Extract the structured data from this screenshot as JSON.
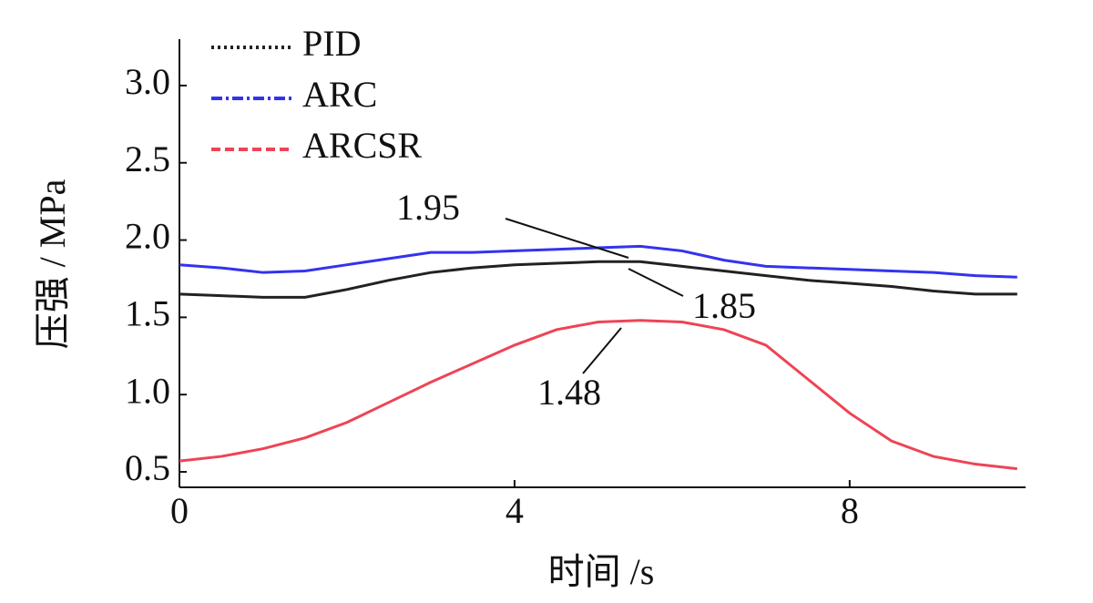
{
  "chart_data": {
    "type": "line",
    "xlabel": "时间 /s",
    "ylabel": "压强 / MPa",
    "x": [
      0,
      0.5,
      1,
      1.5,
      2,
      2.5,
      3,
      3.5,
      4,
      4.5,
      5,
      5.5,
      6,
      6.5,
      7,
      7.5,
      8,
      8.5,
      9,
      9.5,
      10
    ],
    "series": [
      {
        "name": "PID",
        "color": "#222222",
        "dash": "3 4",
        "values": [
          1.65,
          1.64,
          1.63,
          1.63,
          1.68,
          1.74,
          1.79,
          1.82,
          1.84,
          1.85,
          1.86,
          1.86,
          1.83,
          1.8,
          1.77,
          1.74,
          1.72,
          1.7,
          1.67,
          1.65,
          1.65
        ]
      },
      {
        "name": "ARC",
        "color": "#3333ee",
        "dash": "12 4 3 4",
        "values": [
          1.84,
          1.82,
          1.79,
          1.8,
          1.84,
          1.88,
          1.92,
          1.92,
          1.93,
          1.94,
          1.95,
          1.96,
          1.93,
          1.87,
          1.83,
          1.82,
          1.81,
          1.8,
          1.79,
          1.77,
          1.76
        ]
      },
      {
        "name": "ARCSR",
        "color": "#ee4455",
        "dash": "10 5",
        "values": [
          0.57,
          0.6,
          0.65,
          0.72,
          0.82,
          0.95,
          1.08,
          1.2,
          1.32,
          1.42,
          1.47,
          1.48,
          1.47,
          1.42,
          1.32,
          1.1,
          0.88,
          0.7,
          0.6,
          0.55,
          0.52
        ]
      }
    ],
    "annotations": [
      "1.95",
      "1.85",
      "1.48"
    ],
    "xlim": [
      0,
      10.1
    ],
    "xticks": [
      0,
      4,
      8
    ],
    "ylim": [
      0.4,
      3.3
    ],
    "yticks": [
      0.5,
      {
        "value": 1.0,
        "label": "1.0"
      },
      1.5,
      {
        "value": 2.0,
        "label": "2.0"
      },
      2.5,
      {
        "value": 3.0,
        "label": "3.0"
      }
    ],
    "legend": "upper left",
    "grid": false
  }
}
